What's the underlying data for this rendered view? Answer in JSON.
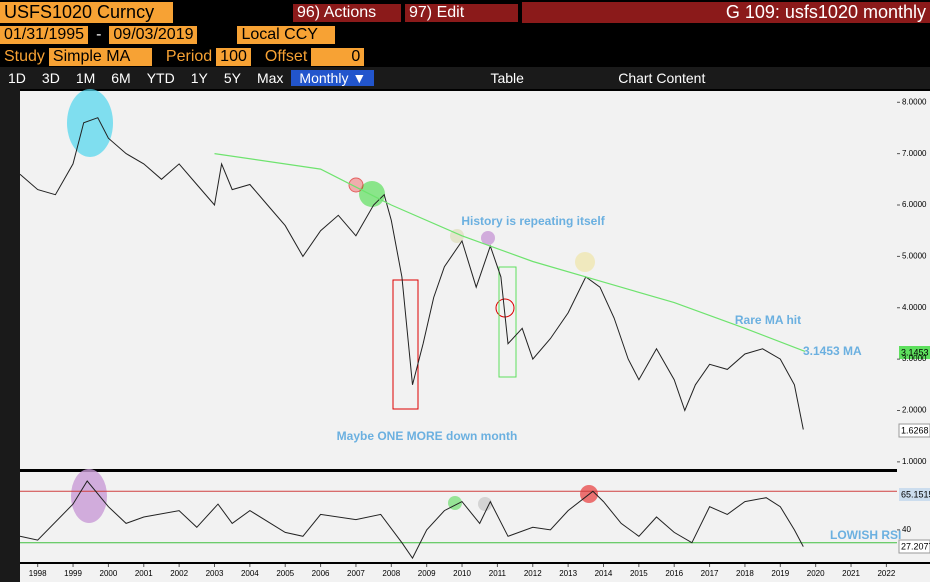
{
  "toolbar": {
    "ticker": "USFS1020 Curncy",
    "actions": "96) Actions",
    "edit": "97) Edit",
    "window_title": "G 109: usfs1020 monthly",
    "start_date": "01/31/1995",
    "end_date": "09/03/2019",
    "currency": "Local CCY",
    "study_label": "Study",
    "study": "Simple MA",
    "period_label": "Period",
    "period": "100",
    "offset_label": "Offset",
    "offset": "0",
    "ranges": [
      "1D",
      "3D",
      "1M",
      "6M",
      "YTD",
      "1Y",
      "5Y",
      "Max"
    ],
    "frequency": "Monthly ▼",
    "table": "Table",
    "chart_content": "Chart Content"
  },
  "chart_data": [
    {
      "type": "line",
      "series": [
        {
          "name": "USFS1020",
          "color": "#222222",
          "x": [
            1997.5,
            1998,
            1998.5,
            1999,
            1999.3,
            1999.7,
            2000,
            2000.5,
            2001,
            2001.5,
            2002,
            2002.5,
            2003,
            2003.2,
            2003.5,
            2004,
            2004.5,
            2005,
            2005.5,
            2006,
            2006.5,
            2007,
            2007.5,
            2007.8,
            2008,
            2008.3,
            2008.6,
            2008.9,
            2009.2,
            2009.5,
            2010,
            2010.4,
            2010.8,
            2011.1,
            2011.3,
            2011.7,
            2012,
            2012.5,
            2013,
            2013.5,
            2013.9,
            2014.3,
            2014.7,
            2015,
            2015.5,
            2016,
            2016.3,
            2016.6,
            2017,
            2017.5,
            2018,
            2018.5,
            2019,
            2019.4,
            2019.65
          ],
          "values": [
            6.6,
            6.3,
            6.2,
            6.8,
            7.6,
            7.7,
            7.3,
            7.0,
            6.8,
            6.5,
            6.8,
            6.4,
            6.0,
            6.8,
            6.3,
            6.4,
            6.0,
            5.6,
            5.0,
            5.5,
            5.8,
            5.4,
            6.0,
            6.2,
            5.7,
            4.6,
            2.5,
            3.3,
            4.2,
            4.8,
            5.3,
            4.4,
            5.2,
            4.6,
            3.3,
            3.6,
            3.0,
            3.4,
            3.9,
            4.6,
            4.4,
            3.8,
            3.0,
            2.6,
            3.2,
            2.6,
            2.0,
            2.5,
            2.9,
            2.8,
            3.1,
            3.2,
            3.0,
            2.5,
            1.63
          ]
        },
        {
          "name": "MA",
          "color": "#6ee36e",
          "x": [
            2003,
            2006,
            2008,
            2010,
            2012,
            2014,
            2016,
            2018,
            2019.7
          ],
          "values": [
            7.0,
            6.7,
            6.0,
            5.4,
            4.9,
            4.5,
            4.1,
            3.6,
            3.15
          ]
        }
      ],
      "xlim": [
        1997.5,
        2022.3
      ],
      "ylim": [
        0.9,
        8.2
      ],
      "yticks": [
        {
          "value": 8,
          "label": "8.0000"
        },
        {
          "value": 7,
          "label": "7.0000"
        },
        {
          "value": 6,
          "label": "6.0000"
        },
        {
          "value": 5,
          "label": "5.0000"
        },
        {
          "value": 4,
          "label": "4.0000"
        },
        {
          "value": 3,
          "label": "3.0000"
        },
        {
          "value": 2,
          "label": "2.0000"
        },
        {
          "value": 1,
          "label": "1.0000"
        }
      ],
      "annotations": [
        "History is repeating itself",
        "Rare MA hit",
        "3.1453 MA",
        "Maybe ONE MORE down month",
        "3.1453",
        "1.6268"
      ]
    },
    {
      "type": "line",
      "series": [
        {
          "name": "RSI",
          "color": "#222222",
          "x": [
            1997.5,
            1998,
            1999,
            1999.4,
            2000,
            2000.5,
            2001,
            2002,
            2002.5,
            2003.1,
            2003.5,
            2004,
            2005,
            2005.5,
            2006,
            2007,
            2007.7,
            2008.3,
            2008.6,
            2009,
            2009.5,
            2010,
            2010.5,
            2010.8,
            2011.3,
            2012,
            2012.5,
            2013,
            2013.7,
            2014,
            2014.5,
            2015,
            2015.5,
            2016,
            2016.5,
            2017,
            2017.5,
            2018,
            2018.6,
            2019,
            2019.4,
            2019.65
          ],
          "values": [
            35,
            32,
            60,
            78,
            58,
            45,
            50,
            55,
            42,
            60,
            45,
            55,
            38,
            35,
            52,
            48,
            52,
            30,
            18,
            40,
            55,
            62,
            45,
            62,
            35,
            42,
            40,
            55,
            70,
            62,
            45,
            35,
            50,
            38,
            30,
            58,
            52,
            62,
            65,
            58,
            40,
            27
          ]
        }
      ],
      "xlim": [
        1997.5,
        2022.3
      ],
      "ylim": [
        15,
        85
      ],
      "yticks": [
        40
      ],
      "ref_lines": [
        70,
        30
      ],
      "xticks": [
        1998,
        1999,
        2000,
        2001,
        2002,
        2003,
        2004,
        2005,
        2006,
        2007,
        2008,
        2009,
        2010,
        2011,
        2012,
        2013,
        2014,
        2015,
        2016,
        2017,
        2018,
        2019,
        2020,
        2021,
        2022
      ],
      "annotations": [
        "LOWISH RSI",
        "65.1515",
        "27.2077"
      ]
    }
  ]
}
